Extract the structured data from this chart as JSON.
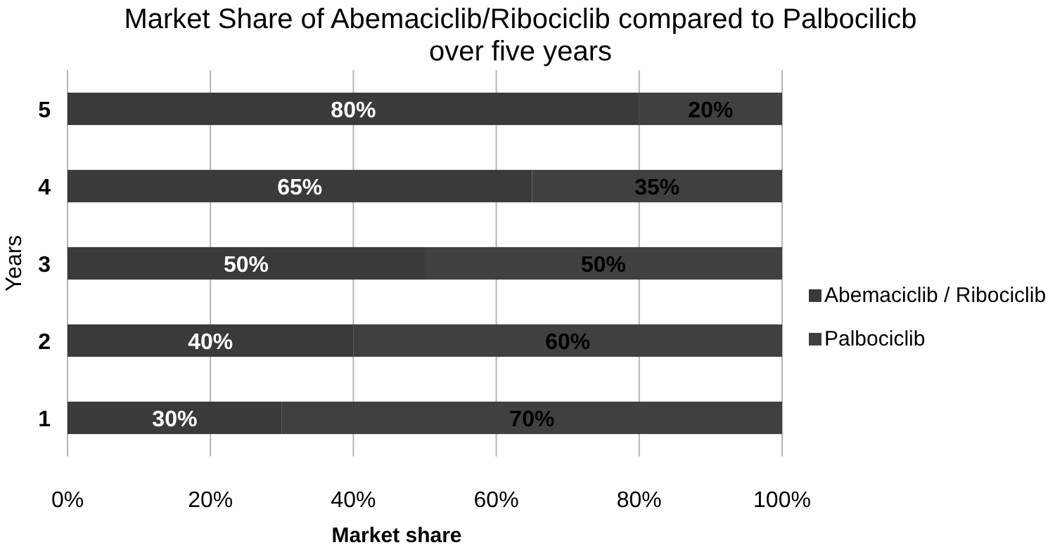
{
  "chart_data": {
    "type": "bar",
    "orientation": "horizontal",
    "stacked": true,
    "title": "Market Share of Abemaciclib/Ribociclib compared to Palbocilicb over five years",
    "xlabel": "Market share",
    "ylabel": "Years",
    "categories": [
      "5",
      "4",
      "3",
      "2",
      "1"
    ],
    "series": [
      {
        "name": "Abemaciclib / Ribociclib",
        "color": "#3a3a3a",
        "values": [
          80,
          65,
          50,
          40,
          30
        ],
        "value_labels": [
          "80%",
          "65%",
          "50%",
          "40%",
          "30%"
        ]
      },
      {
        "name": "Palbociclib",
        "color": "#404040",
        "values": [
          20,
          35,
          50,
          60,
          70
        ],
        "value_labels": [
          "20%",
          "35%",
          "50%",
          "60%",
          "70%"
        ]
      }
    ],
    "xlim": [
      0,
      100
    ],
    "xticks": [
      {
        "value": 0,
        "label": "0%"
      },
      {
        "value": 20,
        "label": "20%"
      },
      {
        "value": 40,
        "label": "40%"
      },
      {
        "value": 60,
        "label": "60%"
      },
      {
        "value": 80,
        "label": "80%"
      },
      {
        "value": 100,
        "label": "100%"
      }
    ],
    "grid": "x",
    "legend": "right"
  }
}
